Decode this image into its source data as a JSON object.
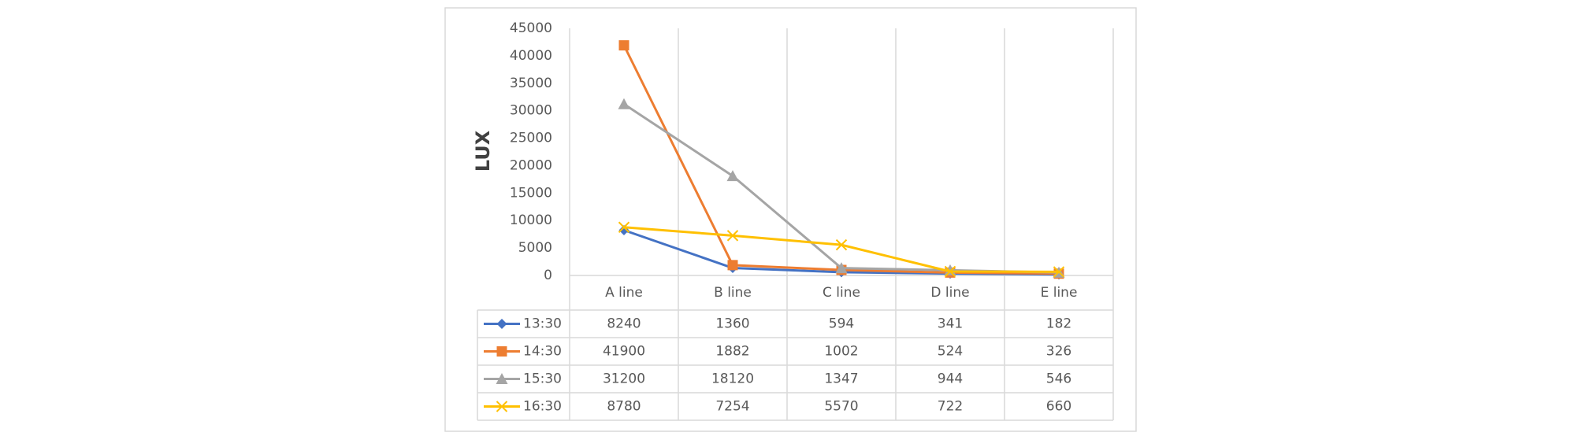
{
  "chart_data": {
    "type": "line",
    "y_label": "LUX",
    "categories": [
      "A line",
      "B line",
      "C line",
      "D line",
      "E line"
    ],
    "series": [
      {
        "name": "13:30",
        "color": "#4472c4",
        "marker": "diamond",
        "values": [
          8240,
          1360,
          594,
          341,
          182
        ]
      },
      {
        "name": "14:30",
        "color": "#ed7d31",
        "marker": "square",
        "values": [
          41900,
          1882,
          1002,
          524,
          326
        ]
      },
      {
        "name": "15:30",
        "color": "#a5a5a5",
        "marker": "triangle",
        "values": [
          31200,
          18120,
          1347,
          944,
          546
        ]
      },
      {
        "name": "16:30",
        "color": "#ffc000",
        "marker": "x",
        "values": [
          8780,
          7254,
          5570,
          722,
          660
        ]
      }
    ],
    "ylim": [
      0,
      45000
    ],
    "yticks": [
      0,
      5000,
      10000,
      15000,
      20000,
      25000,
      30000,
      35000,
      40000,
      45000
    ],
    "data_table": true
  }
}
